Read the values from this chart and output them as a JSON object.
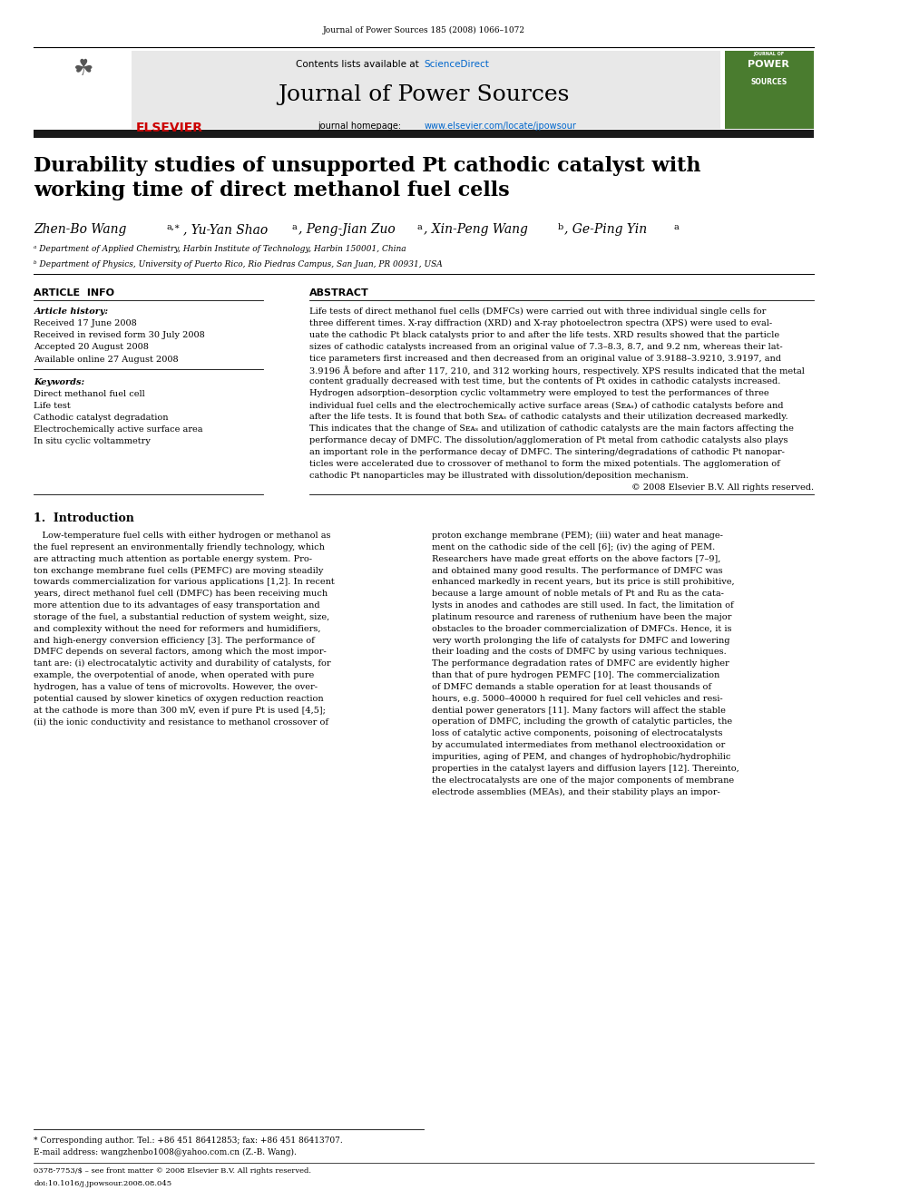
{
  "page_width": 9.92,
  "page_height": 13.23,
  "bg_color": "#ffffff",
  "journal_citation": "Journal of Power Sources 185 (2008) 1066–1072",
  "journal_name": "Journal of Power Sources",
  "contents_text": "Contents lists available at ",
  "sciencedirect_text": "ScienceDirect",
  "homepage_text": "journal homepage: ",
  "homepage_url": "www.elsevier.com/locate/jpowsour",
  "title": "Durability studies of unsupported Pt cathodic catalyst with\nworking time of direct methanol fuel cells",
  "affil_a": "ᵃ Department of Applied Chemistry, Harbin Institute of Technology, Harbin 150001, China",
  "affil_b": "ᵇ Department of Physics, University of Puerto Rico, Rio Piedras Campus, San Juan, PR 00931, USA",
  "section_article_info": "ARTICLE  INFO",
  "section_abstract": "ABSTRACT",
  "article_history_label": "Article history:",
  "received": "Received 17 June 2008",
  "received_revised": "Received in revised form 30 July 2008",
  "accepted": "Accepted 20 August 2008",
  "available": "Available online 27 August 2008",
  "keywords_label": "Keywords:",
  "keywords": [
    "Direct methanol fuel cell",
    "Life test",
    "Cathodic catalyst degradation",
    "Electrochemically active surface area",
    "In situ cyclic voltammetry"
  ],
  "intro_heading": "1.  Introduction",
  "footnote_star": "* Corresponding author. Tel.: +86 451 86412853; fax: +86 451 86413707.",
  "footnote_email": "E-mail address: wangzhenbo1008@yahoo.com.cn (Z.-B. Wang).",
  "footer_issn": "0378-7753/$ – see front matter © 2008 Elsevier B.V. All rights reserved.",
  "footer_doi": "doi:10.1016/j.jpowsour.2008.08.045",
  "dark_bar_color": "#1a1a1a",
  "blue_color": "#0066cc",
  "elsevier_red": "#cc0000",
  "header_gray": "#e8e8e8",
  "cover_green": "#4a7c2f"
}
